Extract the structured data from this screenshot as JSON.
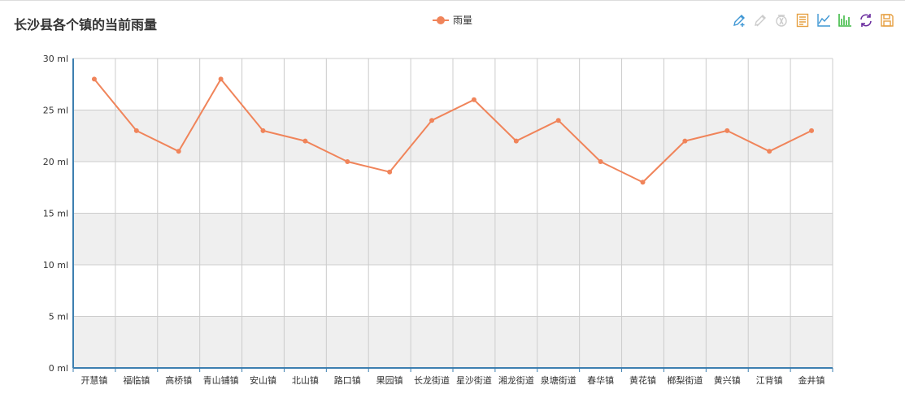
{
  "title": "长沙县各个镇的当前雨量",
  "legend": {
    "label": "雨量",
    "color": "#f0845a"
  },
  "toolbox": [
    {
      "name": "mark-icon",
      "color": "#3f97d4",
      "enabled": true
    },
    {
      "name": "mark-undo-icon",
      "color": "#cccccc",
      "enabled": false
    },
    {
      "name": "mark-clear-icon",
      "color": "#cccccc",
      "enabled": false
    },
    {
      "name": "data-view-icon",
      "color": "#e6a042",
      "enabled": true
    },
    {
      "name": "line-chart-icon",
      "color": "#3f97d4",
      "enabled": true
    },
    {
      "name": "bar-chart-icon",
      "color": "#3fba45",
      "enabled": true
    },
    {
      "name": "restore-icon",
      "color": "#6a2c9e",
      "enabled": true
    },
    {
      "name": "save-image-icon",
      "color": "#e6a042",
      "enabled": true
    }
  ],
  "chart_data": {
    "type": "line",
    "categories": [
      "开慧镇",
      "福临镇",
      "高桥镇",
      "青山铺镇",
      "安山镇",
      "北山镇",
      "路口镇",
      "果园镇",
      "长龙街道",
      "星沙街道",
      "湘龙街道",
      "泉塘街道",
      "春华镇",
      "黄花镇",
      "榔梨街道",
      "黄兴镇",
      "江背镇",
      "金井镇"
    ],
    "series": [
      {
        "name": "雨量",
        "values": [
          28,
          23,
          21,
          28,
          23,
          22,
          20,
          19,
          24,
          26,
          22,
          24,
          20,
          18,
          22,
          23,
          21,
          23
        ],
        "color": "#f0845a"
      }
    ],
    "ylim": [
      0,
      30
    ],
    "yticks": [
      0,
      5,
      10,
      15,
      20,
      25,
      30
    ],
    "yunit": " ml",
    "grid": true,
    "legend_position": "top-center",
    "band_colors": [
      "#efefef",
      "#ffffff"
    ],
    "axis_color": "#3d7fb0",
    "grid_color": "#cccccc"
  }
}
